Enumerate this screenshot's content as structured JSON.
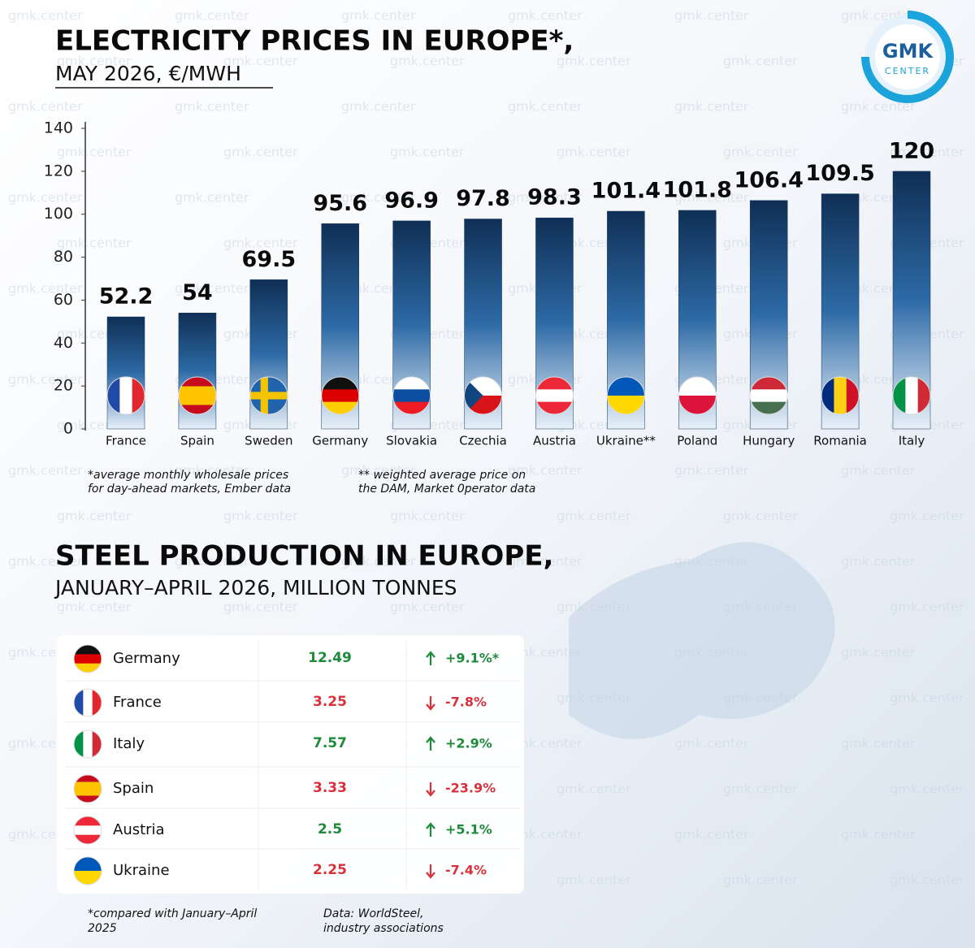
{
  "logo": {
    "name": "GMK",
    "sub": "CENTER"
  },
  "watermark": "gmk.center",
  "chart_data": {
    "type": "bar",
    "title": "ELECTRICITY PRICES IN EUROPE*,",
    "subtitle": "MAY 2026, €/MWH",
    "categories": [
      "France",
      "Spain",
      "Sweden",
      "Germany",
      "Slovakia",
      "Czechia",
      "Austria",
      "Ukraine**",
      "Poland",
      "Hungary",
      "Romania",
      "Italy"
    ],
    "values": [
      52.2,
      54,
      69.5,
      95.6,
      96.9,
      97.8,
      98.3,
      101.4,
      101.8,
      106.4,
      109.5,
      120
    ],
    "color": "#12365f",
    "ylim": [
      0,
      140
    ],
    "yticks": [
      0,
      20,
      40,
      60,
      80,
      100,
      120,
      140
    ],
    "grid": false,
    "notes": [
      "*average monthly wholesale prices",
      "for day-ahead markets, Ember data",
      "** weighted average price on",
      "the DAM, Market 0perator data"
    ]
  },
  "steel": {
    "title": "STEEL PRODUCTION IN EUROPE,",
    "subtitle": "JANUARY–APRIL 2026, MILLION TONNES",
    "rows": [
      [
        "Germany",
        12.49,
        "+9.1%*"
      ],
      [
        "France",
        3.25,
        "-7.8%"
      ],
      [
        "Italy",
        7.57,
        "+2.9%"
      ],
      [
        "Spain",
        3.33,
        "-23.9%"
      ],
      [
        "Austria",
        2.5,
        "+5.1%"
      ],
      [
        "Ukraine",
        2.25,
        "-7.4%"
      ]
    ],
    "notes": [
      "*compared with January–April",
      "2025",
      "Data: WorldSteel,",
      "industry associations"
    ]
  }
}
